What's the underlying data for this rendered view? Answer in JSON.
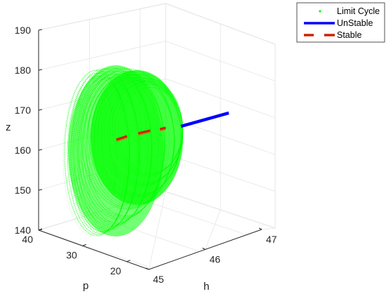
{
  "chart_data": {
    "type": "scatter",
    "title": "",
    "axes": {
      "x": {
        "label": "h",
        "range": [
          45,
          47
        ],
        "ticks": [
          "45",
          "46",
          "47"
        ]
      },
      "y": {
        "label": "p",
        "range": [
          15,
          40
        ],
        "ticks": [
          "20",
          "30",
          "40"
        ]
      },
      "z": {
        "label": "z",
        "range": [
          140,
          190
        ],
        "ticks": [
          "140",
          "150",
          "160",
          "170",
          "180",
          "190"
        ]
      }
    },
    "grid": true,
    "legend": {
      "position": "top-right",
      "entries": [
        {
          "label": "Limit Cycle",
          "color": "#00ff00",
          "marker": "dot"
        },
        {
          "label": "UnStable",
          "color": "#0000ff",
          "marker": "solid-line"
        },
        {
          "label": "Stable",
          "color": "#cc2200",
          "marker": "dashed-line"
        }
      ]
    },
    "series": [
      {
        "name": "Limit Cycle",
        "description_values": {
          "h_range": [
            45.0,
            46.4
          ],
          "p_range": [
            20,
            40
          ],
          "z_range": [
            140,
            180
          ]
        }
      },
      {
        "name": "UnStable",
        "h": [
          46.25,
          46.85
        ],
        "p": [
          26,
          26
        ],
        "z": [
          165,
          171
        ]
      },
      {
        "name": "Stable",
        "h": [
          45.55,
          46.25
        ],
        "p": [
          26,
          26
        ],
        "z": [
          161,
          165
        ]
      }
    ]
  },
  "colors": {
    "limit_cycle": "#00ff00",
    "unstable": "#0000ff",
    "stable": "#cc2200",
    "stable_alt": "#b8860b"
  }
}
